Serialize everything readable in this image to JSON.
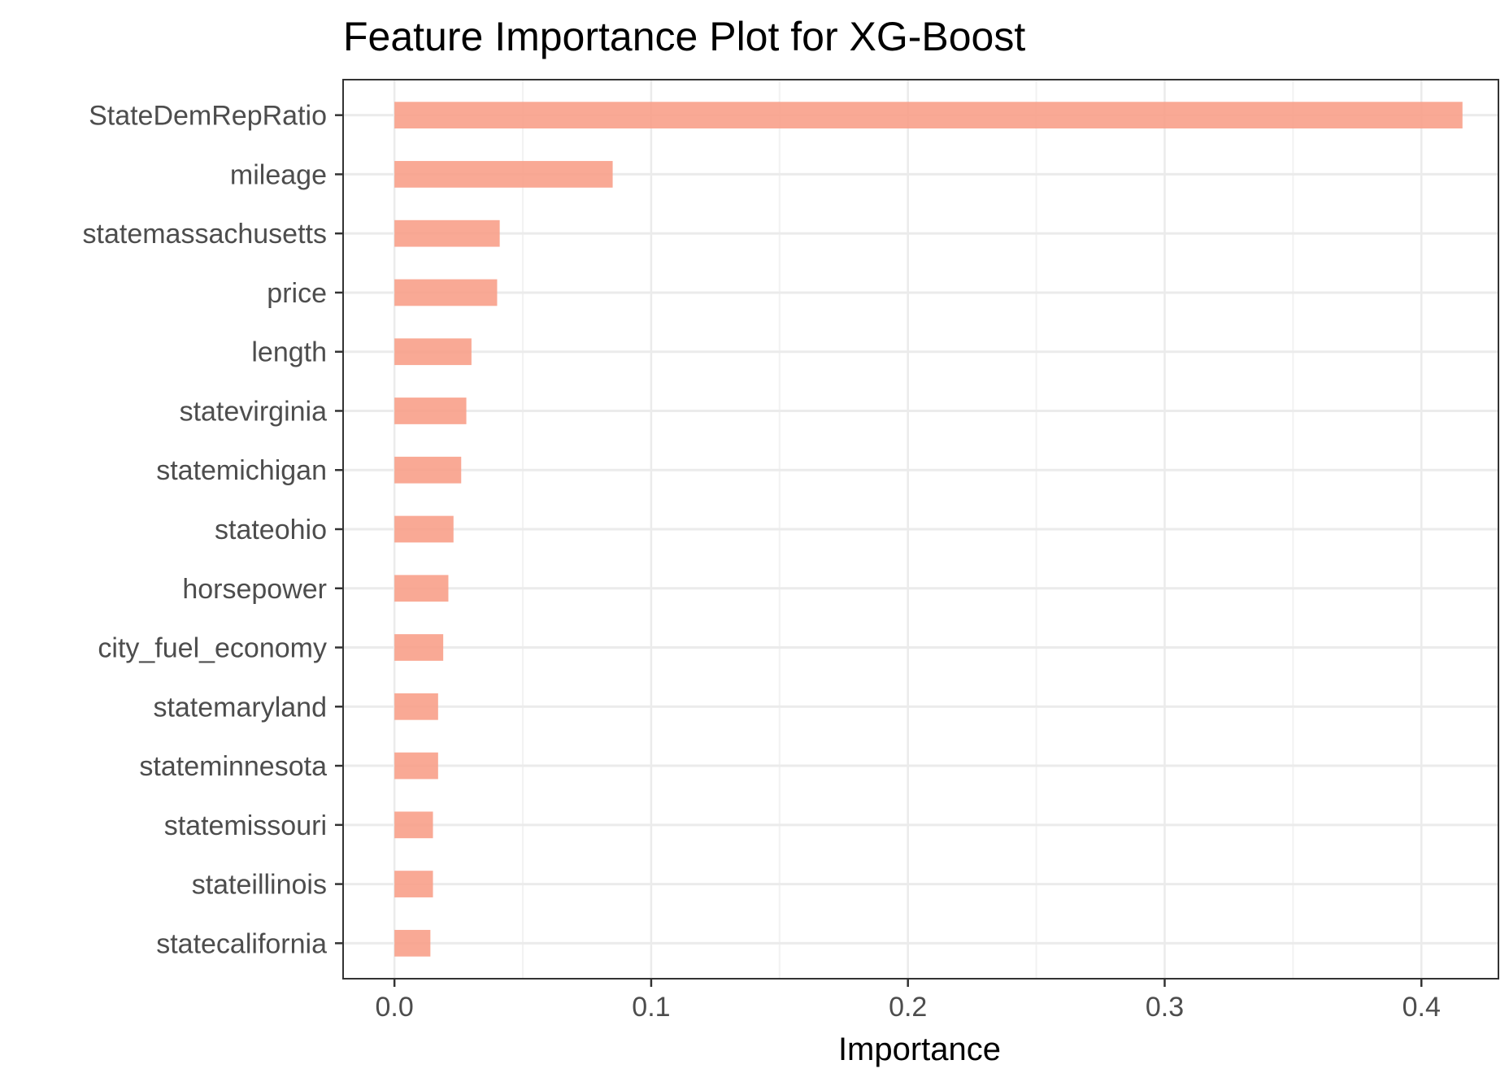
{
  "chart_data": {
    "type": "bar",
    "orientation": "horizontal",
    "title": "Feature Importance Plot for XG-Boost",
    "xlabel": "Importance",
    "ylabel": "",
    "xlim": [
      -0.02,
      0.43
    ],
    "xticks": [
      0.0,
      0.1,
      0.2,
      0.3,
      0.4
    ],
    "xtick_labels": [
      "0.0",
      "0.1",
      "0.2",
      "0.3",
      "0.4"
    ],
    "grid": true,
    "legend": "none",
    "bar_color": "#F8A08A",
    "categories": [
      "StateDemRepRatio",
      "mileage",
      "statemassachusetts",
      "price",
      "length",
      "statevirginia",
      "statemichigan",
      "stateohio",
      "horsepower",
      "city_fuel_economy",
      "statemaryland",
      "stateminnesota",
      "statemissouri",
      "stateillinois",
      "statecalifornia"
    ],
    "values": [
      0.416,
      0.085,
      0.041,
      0.04,
      0.03,
      0.028,
      0.026,
      0.023,
      0.021,
      0.019,
      0.017,
      0.017,
      0.015,
      0.015,
      0.014
    ]
  }
}
